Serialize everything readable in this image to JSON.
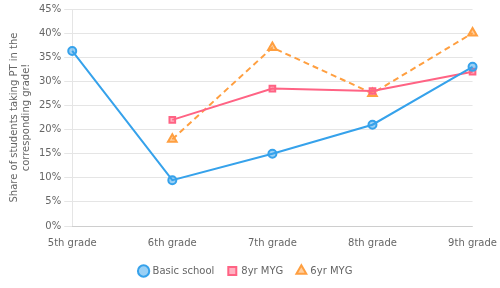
{
  "chart_data": {
    "type": "line",
    "categories": [
      "5th grade",
      "6th grade",
      "7th grade",
      "8th grade",
      "9th grade"
    ],
    "series": [
      {
        "name": "Basic school",
        "values": [
          0.363,
          0.095,
          0.15,
          0.21,
          0.33
        ],
        "marker": "circle",
        "line_style": "solid"
      },
      {
        "name": "8yr MYG",
        "values": [
          null,
          0.22,
          0.285,
          0.28,
          0.32
        ],
        "marker": "square",
        "line_style": "solid"
      },
      {
        "name": "6yr MYG",
        "values": [
          null,
          0.18,
          0.37,
          0.275,
          0.4
        ],
        "marker": "triangle",
        "line_style": "dashed"
      }
    ],
    "ylabel": "Share of students taking PT in the\ncorresponding grade!",
    "ylim": [
      0,
      0.45
    ],
    "yticks": [
      {
        "value": 0.0,
        "label": "0%"
      },
      {
        "value": 0.05,
        "label": "5%"
      },
      {
        "value": 0.1,
        "label": "10%"
      },
      {
        "value": 0.15,
        "label": "15%"
      },
      {
        "value": 0.2,
        "label": "20%"
      },
      {
        "value": 0.25,
        "label": "25%"
      },
      {
        "value": 0.3,
        "label": "30%"
      },
      {
        "value": 0.35,
        "label": "35%"
      },
      {
        "value": 0.4,
        "label": "40%"
      },
      {
        "value": 0.45,
        "label": "45%"
      }
    ],
    "grid": true,
    "legend": "bottom"
  }
}
